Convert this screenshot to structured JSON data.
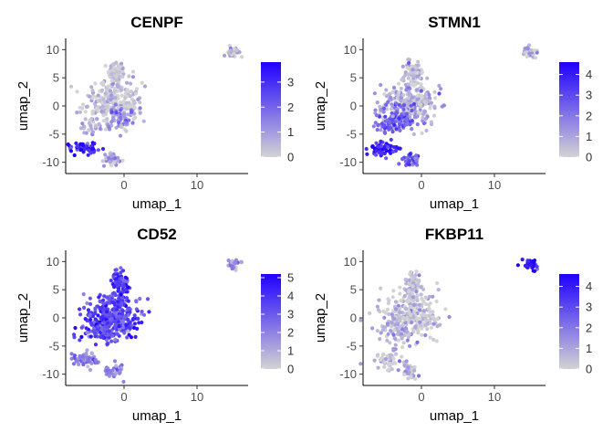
{
  "chart_data": [
    {
      "type": "scatter",
      "title": "CENPF",
      "xlabel": "umap_1",
      "ylabel": "umap_2",
      "xlim": [
        -8,
        17
      ],
      "ylim": [
        -12,
        12
      ],
      "xticks": [
        "0",
        "10"
      ],
      "yticks": [
        "10",
        "5",
        "0",
        "-5",
        "-10"
      ],
      "legend": {
        "position": "right",
        "min": 0,
        "max": 3.8,
        "ticks": [
          "3",
          "2",
          "1",
          "0"
        ],
        "low_color": "#d3d3d3",
        "high_color": "#1f00ff"
      },
      "clusters": [
        {
          "x": -1.0,
          "y": 6.0,
          "sx": 0.6,
          "sy": 1.0,
          "n": 70,
          "value": 0.1
        },
        {
          "x": -1.5,
          "y": 0.5,
          "sx": 2.0,
          "sy": 2.0,
          "n": 260,
          "value": 0.15
        },
        {
          "x": -0.5,
          "y": -2.0,
          "sx": 0.9,
          "sy": 1.2,
          "n": 50,
          "value": 1.3
        },
        {
          "x": -4.5,
          "y": -3.5,
          "sx": 1.0,
          "sy": 0.8,
          "n": 30,
          "value": 0.6
        },
        {
          "x": -5.5,
          "y": -7.5,
          "sx": 0.9,
          "sy": 0.6,
          "n": 60,
          "value": 3.2
        },
        {
          "x": -1.5,
          "y": -9.5,
          "sx": 0.6,
          "sy": 0.6,
          "n": 40,
          "value": 0.9
        },
        {
          "x": 15.0,
          "y": 9.5,
          "sx": 0.5,
          "sy": 0.5,
          "n": 30,
          "value": 0.3
        }
      ]
    },
    {
      "type": "scatter",
      "title": "STMN1",
      "xlabel": "umap_1",
      "ylabel": "umap_2",
      "xlim": [
        -8,
        17
      ],
      "ylim": [
        -12,
        12
      ],
      "xticks": [
        "0",
        "10"
      ],
      "yticks": [
        "10",
        "5",
        "0",
        "-5",
        "-10"
      ],
      "legend": {
        "position": "right",
        "min": 0,
        "max": 4.6,
        "ticks": [
          "4",
          "3",
          "2",
          "1",
          "0"
        ],
        "low_color": "#d3d3d3",
        "high_color": "#1f00ff"
      },
      "clusters": [
        {
          "x": -1.0,
          "y": 6.0,
          "sx": 0.6,
          "sy": 1.0,
          "n": 70,
          "value": 0.4
        },
        {
          "x": -1.5,
          "y": 0.5,
          "sx": 2.0,
          "sy": 2.0,
          "n": 260,
          "value": 0.8
        },
        {
          "x": -3.0,
          "y": -2.0,
          "sx": 1.5,
          "sy": 1.2,
          "n": 80,
          "value": 2.2
        },
        {
          "x": -4.5,
          "y": -3.5,
          "sx": 1.0,
          "sy": 0.8,
          "n": 40,
          "value": 2.8
        },
        {
          "x": -5.5,
          "y": -7.5,
          "sx": 0.9,
          "sy": 0.6,
          "n": 60,
          "value": 3.8
        },
        {
          "x": -1.5,
          "y": -9.5,
          "sx": 0.6,
          "sy": 0.6,
          "n": 40,
          "value": 2.6
        },
        {
          "x": 15.0,
          "y": 9.5,
          "sx": 0.5,
          "sy": 0.5,
          "n": 30,
          "value": 0.6
        }
      ]
    },
    {
      "type": "scatter",
      "title": "CD52",
      "xlabel": "umap_1",
      "ylabel": "umap_2",
      "xlim": [
        -8,
        17
      ],
      "ylim": [
        -12,
        12
      ],
      "xticks": [
        "0",
        "10"
      ],
      "yticks": [
        "10",
        "5",
        "0",
        "-5",
        "-10"
      ],
      "legend": {
        "position": "right",
        "min": 0,
        "max": 5.2,
        "ticks": [
          "5",
          "4",
          "3",
          "2",
          "1",
          "0"
        ],
        "low_color": "#d3d3d3",
        "high_color": "#1f00ff"
      },
      "clusters": [
        {
          "x": -0.5,
          "y": 6.0,
          "sx": 0.6,
          "sy": 1.0,
          "n": 80,
          "value": 4.0
        },
        {
          "x": -1.5,
          "y": 0.5,
          "sx": 2.0,
          "sy": 2.0,
          "n": 300,
          "value": 3.5
        },
        {
          "x": -3.0,
          "y": -2.0,
          "sx": 1.5,
          "sy": 1.2,
          "n": 80,
          "value": 3.2
        },
        {
          "x": -5.0,
          "y": -7.5,
          "sx": 1.0,
          "sy": 0.7,
          "n": 60,
          "value": 2.2
        },
        {
          "x": -1.5,
          "y": -9.5,
          "sx": 0.6,
          "sy": 0.6,
          "n": 40,
          "value": 1.8
        },
        {
          "x": 15.0,
          "y": 9.5,
          "sx": 0.5,
          "sy": 0.5,
          "n": 30,
          "value": 1.5
        }
      ]
    },
    {
      "type": "scatter",
      "title": "FKBP11",
      "xlabel": "umap_1",
      "ylabel": "umap_2",
      "xlim": [
        -8,
        17
      ],
      "ylim": [
        -12,
        12
      ],
      "xticks": [
        "0",
        "10"
      ],
      "yticks": [
        "10",
        "5",
        "0",
        "-5",
        "-10"
      ],
      "legend": {
        "position": "right",
        "min": 0,
        "max": 4.6,
        "ticks": [
          "4",
          "3",
          "2",
          "1",
          "0"
        ],
        "low_color": "#d3d3d3",
        "high_color": "#1f00ff"
      },
      "clusters": [
        {
          "x": -1.0,
          "y": 6.0,
          "sx": 0.6,
          "sy": 1.0,
          "n": 70,
          "value": 0.3
        },
        {
          "x": -1.5,
          "y": 0.5,
          "sx": 2.0,
          "sy": 2.0,
          "n": 260,
          "value": 0.2
        },
        {
          "x": -3.0,
          "y": -2.0,
          "sx": 1.5,
          "sy": 1.2,
          "n": 60,
          "value": 0.7
        },
        {
          "x": -5.0,
          "y": -7.5,
          "sx": 1.0,
          "sy": 0.7,
          "n": 50,
          "value": 0.4
        },
        {
          "x": -1.5,
          "y": -9.5,
          "sx": 0.6,
          "sy": 0.6,
          "n": 40,
          "value": 0.5
        },
        {
          "x": 15.0,
          "y": 9.5,
          "sx": 0.5,
          "sy": 0.5,
          "n": 40,
          "value": 4.0
        }
      ]
    }
  ]
}
